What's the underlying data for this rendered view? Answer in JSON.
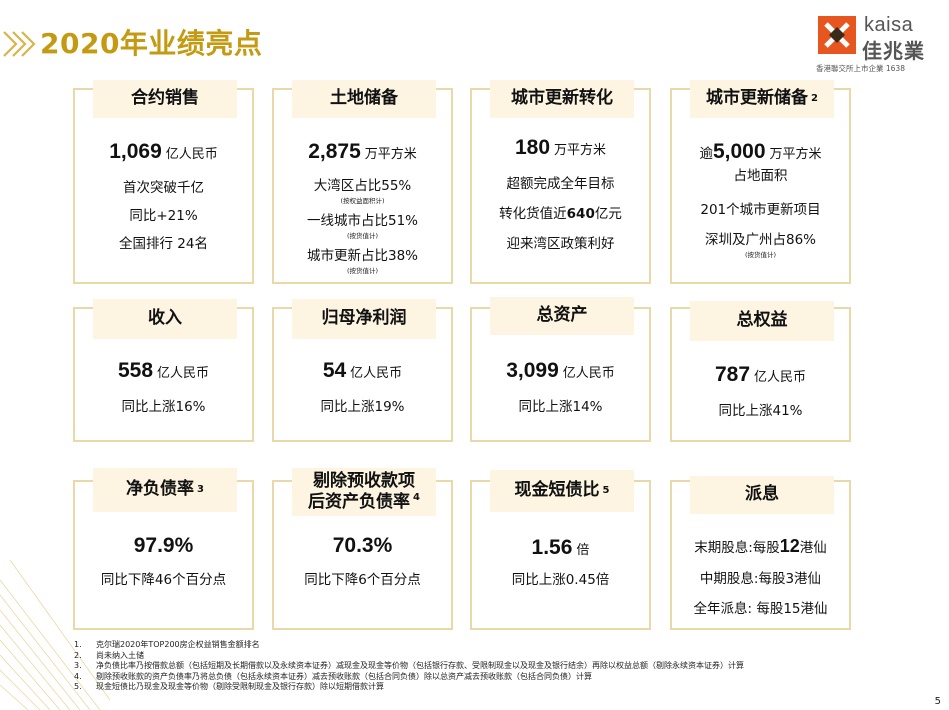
{
  "header": {
    "title": "2020年业绩亮点"
  },
  "logo": {
    "word": "kaisa",
    "cn": "佳兆業",
    "tag": "香港聯交所上市企業 1638"
  },
  "cards": {
    "c1": {
      "title": "合约销售",
      "big": "1,069",
      "unit": "亿人民币",
      "l1": "首次突破千亿",
      "l2": "同比+21%",
      "l3": "全国排行 24名"
    },
    "c2": {
      "title": "土地储备",
      "big": "2,875",
      "unit": "万平方米",
      "l1": "大湾区占比55%",
      "n1": "(按权益面积计)",
      "l2": "一线城市占比51%",
      "n2": "(按货值计)",
      "l3": "城市更新占比38%",
      "n3": "(按货值计)"
    },
    "c3": {
      "title": "城市更新转化",
      "big": "180",
      "unit": "万平方米",
      "l1": "超额完成全年目标",
      "l2a": "转化货值近",
      "l2b": "640",
      "l2c": "亿元",
      "l3": "迎来湾区政策利好"
    },
    "c4": {
      "title": "城市更新储备",
      "sup": "2",
      "pre": "逾",
      "big": "5,000",
      "unit": "万平方米",
      "sub": "占地面积",
      "l1": "201个城市更新项目",
      "l2": "深圳及广州占86%",
      "n2": "(按货值计)"
    },
    "c5": {
      "title": "收入",
      "big": "558",
      "unit": "亿人民币",
      "l1": "同比上涨16%"
    },
    "c6": {
      "title": "归母净利润",
      "big": "54",
      "unit": "亿人民币",
      "l1": "同比上涨19%"
    },
    "c7": {
      "title": "总资产",
      "big": "3,099",
      "unit": "亿人民币",
      "l1": "同比上涨14%"
    },
    "c8": {
      "title": "总权益",
      "big": "787",
      "unit": "亿人民币",
      "l1": "同比上涨41%"
    },
    "c9": {
      "title": "净负债率",
      "sup": "3",
      "big": "97.9%",
      "l1": "同比下降46个百分点"
    },
    "c10": {
      "title1": "剔除预收款项",
      "title2": "后资产负债率",
      "sup": "4",
      "big": "70.3%",
      "l1": "同比下降6个百分点"
    },
    "c11": {
      "title": "现金短债比",
      "sup": "5",
      "big": "1.56",
      "unit": "倍",
      "l1": "同比上涨0.45倍"
    },
    "c12": {
      "title": "派息",
      "l1a": "末期股息:每股",
      "l1b": "12",
      "l1c": "港仙",
      "l2": "中期股息:每股3港仙",
      "l3": "全年派息: 每股15港仙"
    }
  },
  "footnotes": [
    {
      "num": "1.",
      "text": "克尔瑞2020年TOP200房企权益销售金额排名"
    },
    {
      "num": "2.",
      "text": "尚未纳入土储"
    },
    {
      "num": "3.",
      "text": "净负债比率乃按借款总额（包括短期及长期借款以及永续资本证券）减现金及现金等价物（包括银行存款、受限制现金以及现金及银行结余）再除以权益总额（剔除永续资本证券）计算"
    },
    {
      "num": "4.",
      "text": "剔除预收账款的资产负债率乃将总负债（包括永续资本证券）减去预收账款（包括合同负债）除以总资产减去预收账款（包括合同负债）计算"
    },
    {
      "num": "5.",
      "text": "现金短债比乃现金及现金等价物（剔除受限制现金及银行存款）除以短期借款计算"
    }
  ],
  "page_number": "5",
  "colors": {
    "title_gold": "#c49a12",
    "card_border": "#e9d9a8",
    "pill_bg": "#fdf5e2",
    "logo_orange": "#e8561f"
  }
}
